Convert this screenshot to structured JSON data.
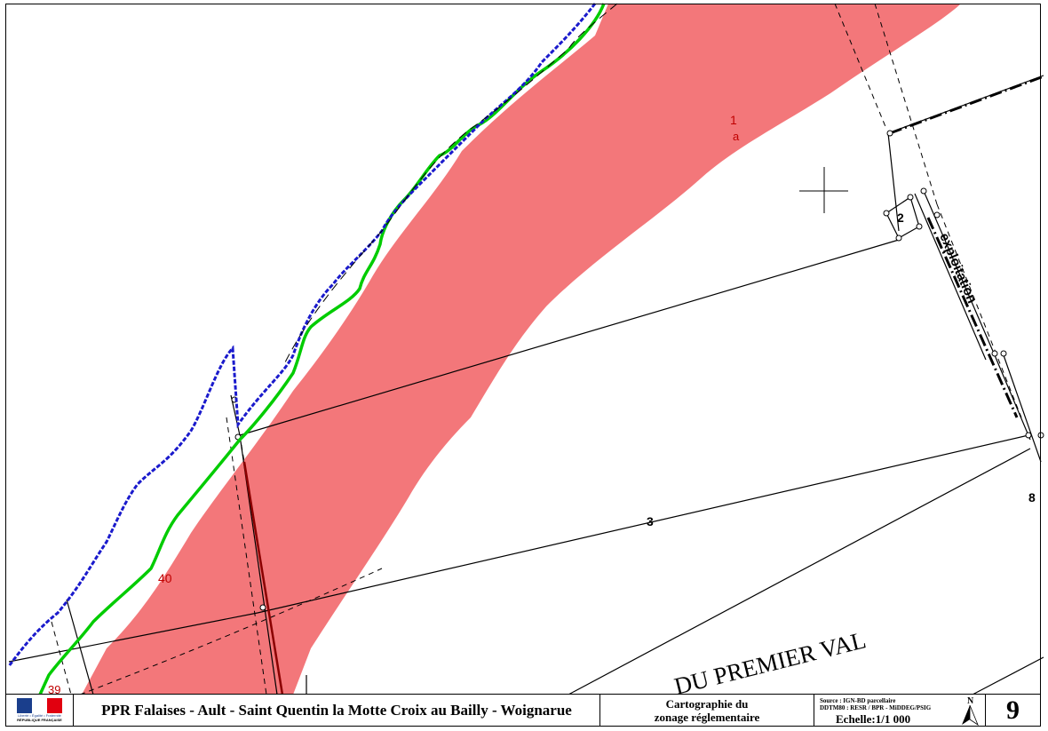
{
  "map": {
    "labels": {
      "parcel_1": "1",
      "parcel_1_sub": "a",
      "parcel_2": "2",
      "parcel_3": "3",
      "parcel_8": "8",
      "parcel_40": "40",
      "parcel_39": "39",
      "road_label": "DU  PREMIER  VAL",
      "exploitation_label": "exploitation"
    },
    "colors": {
      "hazard_zone": "#f3777a",
      "cliff_top": "#00cc00",
      "cliff_edge": "#1a1acc",
      "cadastral": "#000000",
      "zone_red_text": "#c00000"
    }
  },
  "cartouche": {
    "logo": {
      "motto": "Liberté • Égalité • Fraternité",
      "republic": "RÉPUBLIQUE FRANÇAISE"
    },
    "title": "PPR Falaises - Ault - Saint Quentin la Motte Croix au Bailly - Woignarue",
    "subtitle_line1": "Cartographie du",
    "subtitle_line2": "zonage réglementaire",
    "source_line1": "Source : IGN-BD parcellaire",
    "source_line2": "DDTM80 : RESR / BPR  - MiDDEG/PSIG",
    "scale": "Echelle:1/1 000",
    "north": "N",
    "sheet_number": "9"
  }
}
